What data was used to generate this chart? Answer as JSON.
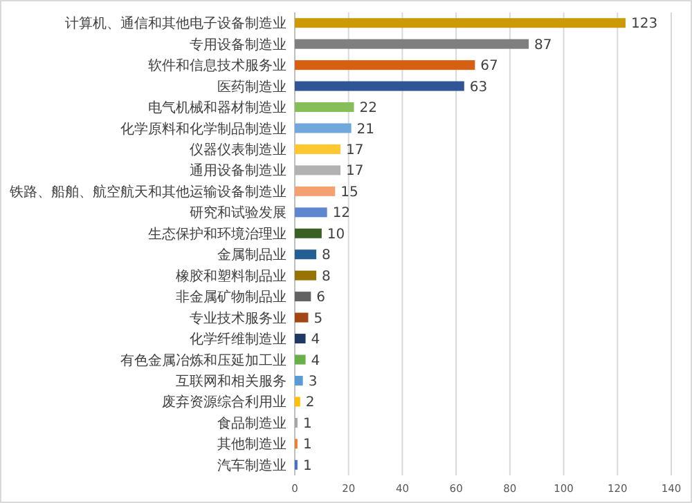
{
  "chart_data": {
    "type": "bar",
    "orientation": "horizontal",
    "categories": [
      "计算机、通信和其他电子设备制造业",
      "专用设备制造业",
      "软件和信息技术服务业",
      "医药制造业",
      "电气机械和器材制造业",
      "化学原料和化学制品制造业",
      "仪器仪表制造业",
      "通用设备制造业",
      "铁路、船舶、航空航天和其他运输设备制造业",
      "研究和试验发展",
      "生态保护和环境治理业",
      "金属制品业",
      "橡胶和塑料制品业",
      "非金属矿物制品业",
      "专业技术服务业",
      "化学纤维制造业",
      "有色金属冶炼和压延加工业",
      "互联网和相关服务",
      "废弃资源综合利用业",
      "食品制造业",
      "其他制造业",
      "汽车制造业"
    ],
    "values": [
      123,
      87,
      67,
      63,
      22,
      21,
      17,
      17,
      15,
      12,
      10,
      8,
      8,
      6,
      5,
      4,
      4,
      3,
      2,
      1,
      1,
      1
    ],
    "colors": [
      "#cc9a06",
      "#7f7f7f",
      "#d65f12",
      "#2f5597",
      "#86be5a",
      "#70a8dc",
      "#ffc832",
      "#b2b2b2",
      "#f4a070",
      "#5f87d0",
      "#3b6024",
      "#245f94",
      "#977305",
      "#636363",
      "#a34613",
      "#203864",
      "#6ab04a",
      "#5b9bd5",
      "#ffc000",
      "#a5a5a5",
      "#ed7d31",
      "#4472c4"
    ],
    "xlim": [
      0,
      140
    ],
    "xticks": [
      0,
      20,
      40,
      60,
      80,
      100,
      120,
      140
    ],
    "grid": "x",
    "data_labels": true
  }
}
